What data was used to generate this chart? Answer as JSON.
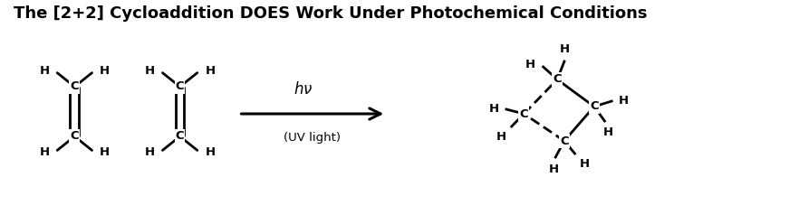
{
  "title": "The [2+2] Cycloaddition DOES Work Under Photochemical Conditions",
  "title_fontsize": 13,
  "title_fontweight": "bold",
  "bg_color": "#ffffff",
  "text_color": "#000000",
  "figsize": [
    8.82,
    2.48
  ],
  "dpi": 100,
  "arrow_label": "hν",
  "arrow_sublabel": "(UV light)"
}
